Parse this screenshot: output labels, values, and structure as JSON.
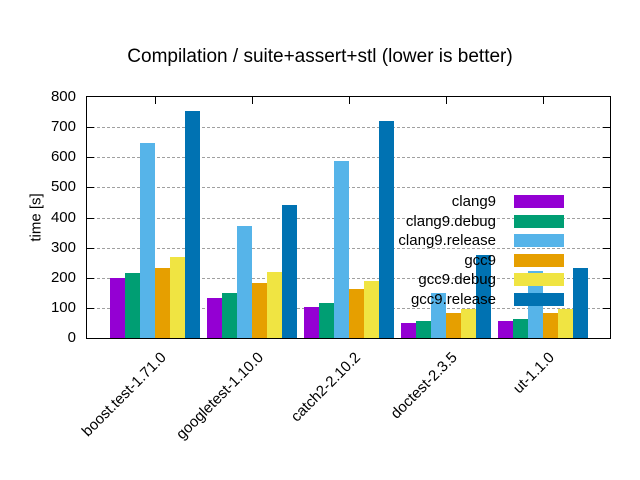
{
  "title": "Compilation / suite+assert+stl (lower is better)",
  "colors": {
    "background": "#ffffff",
    "axis": "#000000",
    "grid": "#a0a0a0",
    "text": "#000000"
  },
  "chart_data": {
    "type": "bar",
    "title": "Compilation / suite+assert+stl (lower is better)",
    "xlabel": "",
    "ylabel": "time [s]",
    "ylim": [
      0,
      800
    ],
    "yticks": [
      0,
      100,
      200,
      300,
      400,
      500,
      600,
      700,
      800
    ],
    "grid": "horizontal-dashed",
    "legend_position": "top-right-inside",
    "categories": [
      "boost.test-1.71.0",
      "googletest-1.10.0",
      "catch2-2.10.2",
      "doctest-2.3.5",
      "ut-1.1.0"
    ],
    "series": [
      {
        "name": "clang9",
        "color": "#9400d3",
        "values": [
          200,
          133,
          104,
          50,
          55
        ]
      },
      {
        "name": "clang9.debug",
        "color": "#009e73",
        "values": [
          216,
          150,
          116,
          57,
          62
        ]
      },
      {
        "name": "clang9.release",
        "color": "#56b4e9",
        "values": [
          648,
          371,
          587,
          150,
          221
        ]
      },
      {
        "name": "gcc9",
        "color": "#e69f00",
        "values": [
          233,
          184,
          164,
          84,
          83
        ]
      },
      {
        "name": "gcc9.debug",
        "color": "#f0e442",
        "values": [
          268,
          218,
          189,
          97,
          96
        ]
      },
      {
        "name": "gcc9.release",
        "color": "#0072b2",
        "values": [
          752,
          442,
          721,
          277,
          233
        ]
      }
    ]
  }
}
